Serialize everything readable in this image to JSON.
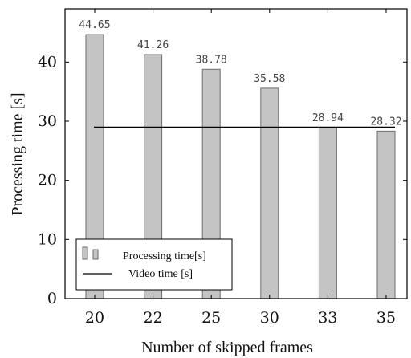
{
  "chart_data": {
    "type": "bar",
    "categories": [
      "20",
      "22",
      "25",
      "30",
      "33",
      "35"
    ],
    "values": [
      44.65,
      41.26,
      38.78,
      35.58,
      28.94,
      28.32
    ],
    "data_labels": [
      "44.65",
      "41.26",
      "38.78",
      "35.58",
      "28.94",
      "28.32"
    ],
    "reference_line": {
      "name": "Video time [s]",
      "value": 29
    },
    "series": [
      {
        "name": "Processing time[s]",
        "values": [
          44.65,
          41.26,
          38.78,
          35.58,
          28.94,
          28.32
        ]
      }
    ],
    "xlabel": "Number of skipped frames",
    "ylabel": "Processing time [s]",
    "ylim": [
      0,
      49
    ],
    "yticks": [
      0,
      10,
      20,
      30,
      40
    ],
    "grid": false,
    "legend_position": "bottom-left",
    "colors": {
      "bar_fill": "#c4c4c4",
      "bar_stroke": "#6e6e6e",
      "line": "#000000"
    }
  }
}
